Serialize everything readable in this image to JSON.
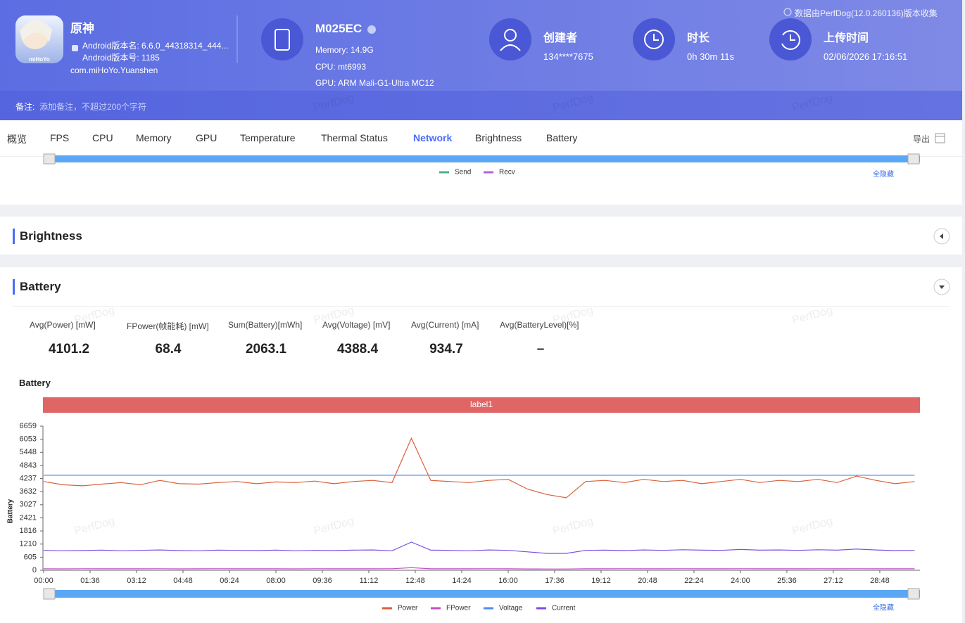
{
  "header": {
    "app_name": "原神",
    "version_name": "Android版本名: 6.6.0_44318314_444...",
    "version_code": "Android版本号: 1185",
    "package": "com.miHoYo.Yuanshen",
    "device": "M025EC",
    "memory": "Memory: 14.9G",
    "cpu": "CPU: mt6993",
    "gpu": "GPU: ARM Mali-G1-Ultra MC12",
    "creator_label": "创建者",
    "creator": "134****7675",
    "duration_label": "时长",
    "duration": "0h 30m 11s",
    "upload_label": "上传时间",
    "upload_time": "02/06/2026 17:16:51",
    "source_note": "数据由PerfDog(12.0.260136)版本收集",
    "icon_text": "miHoYo"
  },
  "remark": {
    "label": "备注:",
    "placeholder": "添加备注，不超过200个字符"
  },
  "tabs": [
    "概览",
    "FPS",
    "CPU",
    "Memory",
    "GPU",
    "Temperature",
    "Thermal Status",
    "Network",
    "Brightness",
    "Battery"
  ],
  "active_tab": 7,
  "export": "导出",
  "network": {
    "series": [
      {
        "name": "Send",
        "color": "#4caf8a"
      },
      {
        "name": "Recv",
        "color": "#b85fe0"
      }
    ],
    "hide_all": "全隐藏"
  },
  "brightness": {
    "title": "Brightness"
  },
  "battery": {
    "title": "Battery",
    "stats": [
      {
        "label": "Avg(Power) [mW]",
        "value": 4101.2
      },
      {
        "label": "FPower(帧能耗) [mW]",
        "value": 68.4
      },
      {
        "label": "Sum(Battery)[mWh]",
        "value": 2063.1
      },
      {
        "label": "Avg(Voltage) [mV]",
        "value": 4388.4
      },
      {
        "label": "Avg(Current) [mA]",
        "value": 934.7
      },
      {
        "label": "Avg(BatteryLevel)[%]",
        "value": "–"
      }
    ],
    "chart_data": {
      "type": "line",
      "title": "Battery",
      "banner": "label1",
      "y_label": "Battery",
      "hide_all": "全隐藏",
      "grid": false,
      "x": [
        0,
        40,
        80,
        120,
        160,
        200,
        240,
        280,
        320,
        360,
        400,
        440,
        480,
        520,
        560,
        600,
        640,
        680,
        720,
        760,
        800,
        840,
        880,
        920,
        960,
        1000,
        1040,
        1080,
        1120,
        1160,
        1200,
        1240,
        1280,
        1320,
        1360,
        1400,
        1440,
        1480,
        1520,
        1560,
        1600,
        1640,
        1680,
        1720,
        1760,
        1800
      ],
      "xlim": [
        0,
        1811
      ],
      "xticks": [
        {
          "value": 0,
          "label": "00:00"
        },
        {
          "value": 96,
          "label": "01:36"
        },
        {
          "value": 192,
          "label": "03:12"
        },
        {
          "value": 288,
          "label": "04:48"
        },
        {
          "value": 384,
          "label": "06:24"
        },
        {
          "value": 480,
          "label": "08:00"
        },
        {
          "value": 576,
          "label": "09:36"
        },
        {
          "value": 672,
          "label": "11:12"
        },
        {
          "value": 768,
          "label": "12:48"
        },
        {
          "value": 864,
          "label": "14:24"
        },
        {
          "value": 960,
          "label": "16:00"
        },
        {
          "value": 1056,
          "label": "17:36"
        },
        {
          "value": 1152,
          "label": "19:12"
        },
        {
          "value": 1248,
          "label": "20:48"
        },
        {
          "value": 1344,
          "label": "22:24"
        },
        {
          "value": 1440,
          "label": "24:00"
        },
        {
          "value": 1536,
          "label": "25:36"
        },
        {
          "value": 1632,
          "label": "27:12"
        },
        {
          "value": 1728,
          "label": "28:48"
        }
      ],
      "ylim": [
        0,
        6659
      ],
      "yticks": [
        0,
        605,
        1210,
        1816,
        2421,
        3027,
        3632,
        4237,
        4843,
        5448,
        6053,
        6659
      ],
      "series": [
        {
          "name": "Power",
          "color": "#d9603b",
          "values": [
            4100,
            3950,
            3900,
            3980,
            4050,
            3950,
            4150,
            4000,
            3980,
            4050,
            4100,
            4000,
            4080,
            4050,
            4120,
            4000,
            4100,
            4150,
            4050,
            6100,
            4150,
            4100,
            4050,
            4150,
            4200,
            3750,
            3500,
            3350,
            4100,
            4150,
            4050,
            4200,
            4100,
            4150,
            4000,
            4100,
            4200,
            4050,
            4150,
            4100,
            4200,
            4050,
            4350,
            4150,
            4000,
            4100
          ]
        },
        {
          "name": "FPower",
          "color": "#c44fc4",
          "values": [
            68,
            66,
            70,
            67,
            69,
            68,
            71,
            66,
            68,
            70,
            67,
            69,
            68,
            66,
            70,
            68,
            69,
            67,
            70,
            120,
            68,
            67,
            69,
            70,
            68,
            62,
            58,
            57,
            68,
            69,
            70,
            67,
            68,
            71,
            69,
            68,
            70,
            67,
            69,
            68,
            70,
            69,
            72,
            68,
            67,
            68
          ]
        },
        {
          "name": "Voltage",
          "color": "#4e8ef0",
          "values": [
            4388,
            4388,
            4388,
            4388,
            4388,
            4388,
            4388,
            4388,
            4388,
            4388,
            4388,
            4388,
            4388,
            4388,
            4388,
            4388,
            4388,
            4388,
            4388,
            4388,
            4388,
            4388,
            4388,
            4388,
            4388,
            4388,
            4388,
            4388,
            4388,
            4388,
            4388,
            4388,
            4388,
            4388,
            4388,
            4388,
            4388,
            4388,
            4388,
            4388,
            4388,
            4388,
            4388,
            4388,
            4388,
            4388
          ]
        },
        {
          "name": "Current",
          "color": "#7a4fe3",
          "values": [
            920,
            900,
            910,
            930,
            900,
            920,
            940,
            910,
            900,
            930,
            920,
            910,
            930,
            900,
            920,
            910,
            930,
            940,
            900,
            1300,
            930,
            920,
            900,
            940,
            920,
            850,
            780,
            780,
            920,
            930,
            910,
            940,
            920,
            950,
            930,
            920,
            960,
            930,
            940,
            920,
            950,
            930,
            980,
            940,
            910,
            920
          ]
        }
      ]
    }
  },
  "watermark": "PerfDog"
}
